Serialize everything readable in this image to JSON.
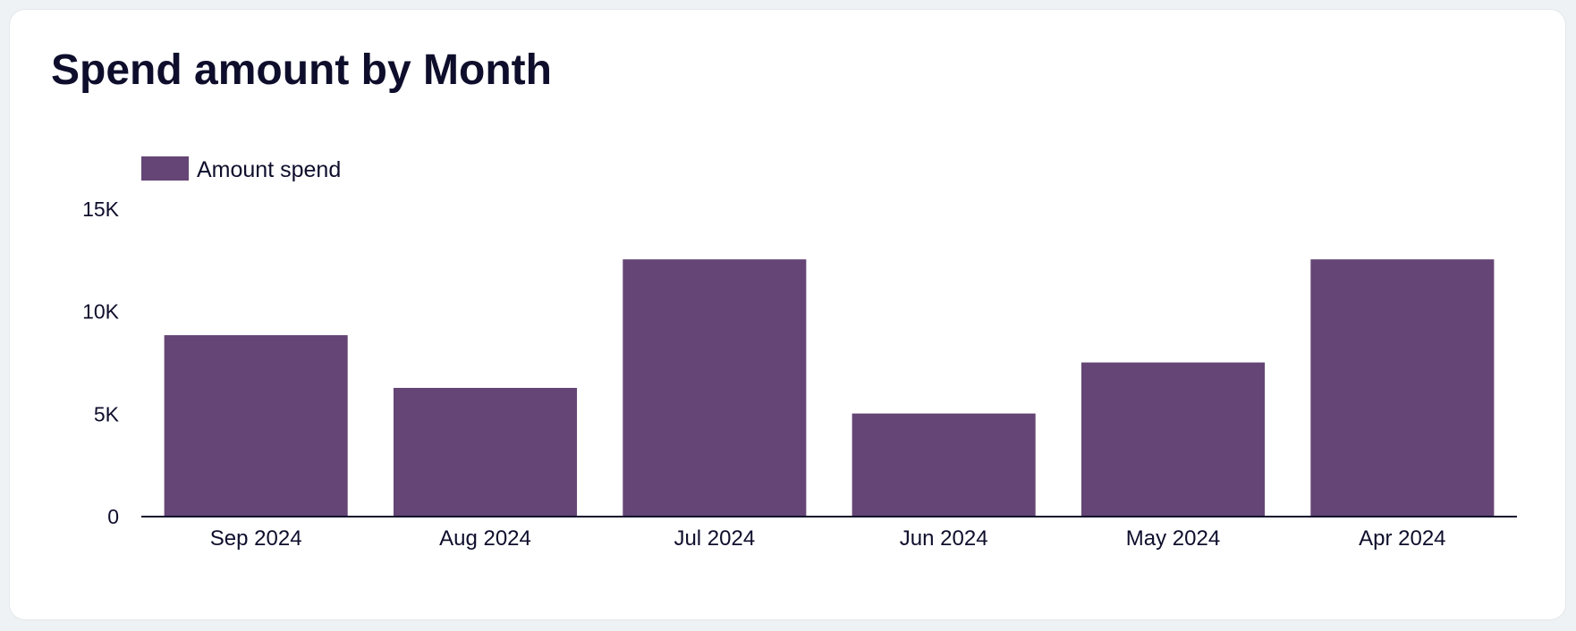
{
  "card": {
    "title": "Spend amount by Month"
  },
  "colors": {
    "bar": "#654575",
    "axis": "#0e0e2c",
    "text": "#0e0e2c",
    "card_bg": "#ffffff",
    "page_bg": "#eef2f4"
  },
  "chart_data": {
    "type": "bar",
    "title": "Spend amount by Month",
    "xlabel": "",
    "ylabel": "",
    "categories": [
      "Sep 2024",
      "Aug 2024",
      "Jul 2024",
      "Jun 2024",
      "May 2024",
      "Apr 2024"
    ],
    "series": [
      {
        "name": "Amount spend",
        "values": [
          8850,
          6280,
          12550,
          5030,
          7520,
          12550
        ]
      }
    ],
    "ylim": [
      0,
      15000
    ],
    "yticks": [
      0,
      5000,
      10000,
      15000
    ],
    "ytick_labels": [
      "0",
      "5K",
      "10K",
      "15K"
    ],
    "grid": false,
    "legend_position": "top-left"
  }
}
